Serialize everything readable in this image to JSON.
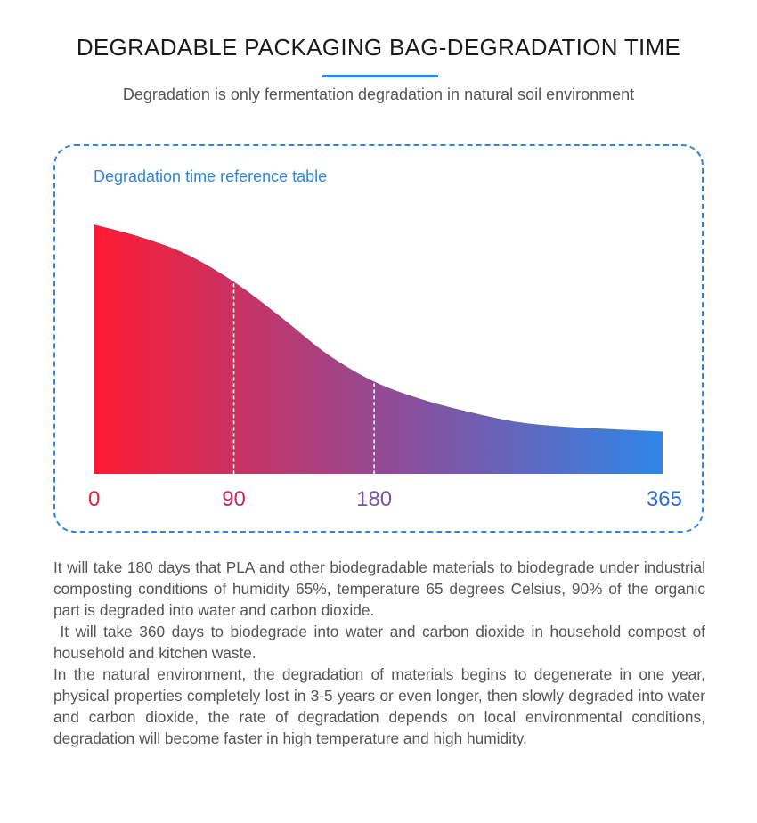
{
  "header": {
    "title": "DEGRADABLE PACKAGING BAG-DEGRADATION TIME",
    "subtitle": "Degradation is only fermentation degradation in natural soil environment"
  },
  "panel": {
    "caption": "Degradation time reference table"
  },
  "colors": {
    "accent": "#2f86dc",
    "gradient_start": "#ff1a33",
    "gradient_mid": "#8a4e9c",
    "gradient_end": "#2f86e8"
  },
  "chart_data": {
    "type": "area",
    "title": "Degradation time reference table",
    "xlabel": "",
    "ylabel": "",
    "xlim": [
      0,
      365
    ],
    "ylim": [
      0,
      100
    ],
    "x": [
      0,
      30,
      60,
      90,
      120,
      150,
      180,
      210,
      240,
      270,
      300,
      330,
      365
    ],
    "y": [
      100,
      95,
      88,
      77,
      63,
      48,
      37,
      30,
      25,
      21,
      19,
      18,
      17
    ],
    "tick_labels": [
      {
        "value": 0,
        "label": "0",
        "color": "#e0203c"
      },
      {
        "value": 90,
        "label": "90",
        "color": "#c42b5a"
      },
      {
        "value": 180,
        "label": "180",
        "color": "#7a55a0"
      },
      {
        "value": 365,
        "label": "365",
        "color": "#2f6fd0"
      }
    ],
    "markers": [
      90,
      180
    ],
    "grid": false
  },
  "description": {
    "paragraphs": [
      "It will take 180 days that PLA and other biodegradable materials to biodegrade under industrial composting conditions of humidity 65%, temperature 65 degrees Celsius, 90% of the organic part is degraded into water and carbon dioxide.",
      " It will take 360 days to biodegrade into water and carbon dioxide in household compost of household and kitchen waste.",
      "In the natural environment, the degradation of materials begins to degenerate in one year, physical properties completely lost in 3-5 years or even longer, then slowly degraded into water and carbon dioxide, the rate of degradation depends on local environmental conditions, degradation will become faster in high temperature and high humidity."
    ]
  }
}
